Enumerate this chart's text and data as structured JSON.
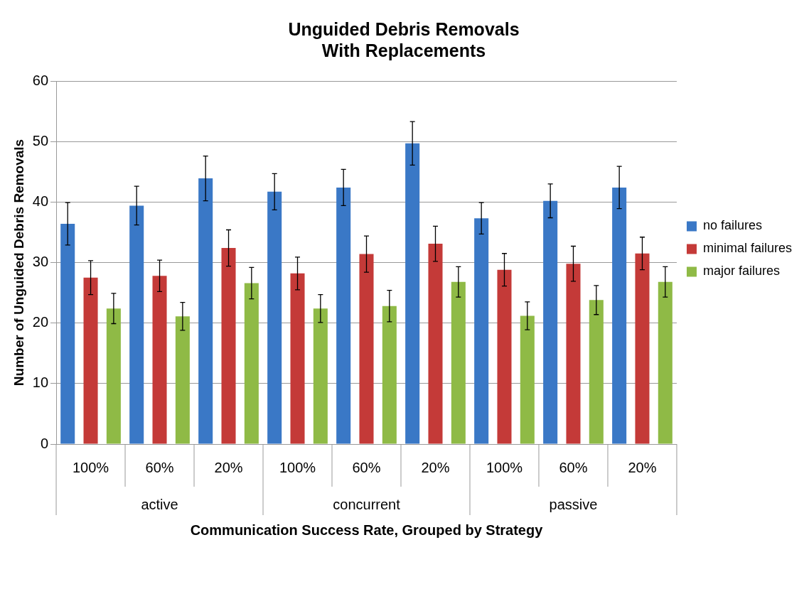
{
  "chart_data": {
    "type": "bar",
    "title": "Unguided Debris Removals\nWith Replacements",
    "xlabel": "Communication Success Rate, Grouped by Strategy",
    "ylabel": "Number of Unguided Debris Removals",
    "categories": [
      "100%",
      "60%",
      "20%",
      "100%",
      "60%",
      "20%",
      "100%",
      "60%",
      "20%"
    ],
    "annotations": [
      "active",
      "concurrent",
      "passive"
    ],
    "series": [
      {
        "name": "no failures",
        "color": "#3a78c6",
        "values": [
          36.4,
          39.4,
          43.9,
          41.7,
          42.4,
          49.7,
          37.3,
          40.2,
          42.4
        ],
        "errors": [
          3.5,
          3.2,
          3.7,
          3.0,
          3.0,
          3.6,
          2.6,
          2.8,
          3.5
        ]
      },
      {
        "name": "minimal failures",
        "color": "#c43a38",
        "values": [
          27.5,
          27.8,
          32.4,
          28.2,
          31.4,
          33.1,
          28.8,
          29.8,
          31.5
        ],
        "errors": [
          2.8,
          2.6,
          3.0,
          2.7,
          3.0,
          2.9,
          2.7,
          2.9,
          2.7
        ]
      },
      {
        "name": "major failures",
        "color": "#8fba46",
        "values": [
          22.4,
          21.1,
          26.6,
          22.4,
          22.8,
          26.8,
          21.2,
          23.8,
          26.8
        ],
        "errors": [
          2.5,
          2.3,
          2.6,
          2.3,
          2.6,
          2.5,
          2.3,
          2.4,
          2.5
        ]
      }
    ],
    "ylim": [
      0,
      60
    ],
    "yticks": [
      0,
      10,
      20,
      30,
      40,
      50,
      60
    ],
    "grid": "y",
    "legend": "right"
  }
}
